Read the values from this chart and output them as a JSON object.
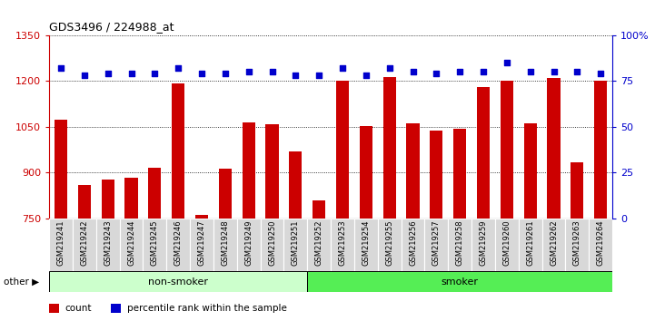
{
  "title": "GDS3496 / 224988_at",
  "categories": [
    "GSM219241",
    "GSM219242",
    "GSM219243",
    "GSM219244",
    "GSM219245",
    "GSM219246",
    "GSM219247",
    "GSM219248",
    "GSM219249",
    "GSM219250",
    "GSM219251",
    "GSM219252",
    "GSM219253",
    "GSM219254",
    "GSM219255",
    "GSM219256",
    "GSM219257",
    "GSM219258",
    "GSM219259",
    "GSM219260",
    "GSM219261",
    "GSM219262",
    "GSM219263",
    "GSM219264"
  ],
  "bar_values": [
    1072,
    858,
    878,
    882,
    915,
    1192,
    762,
    912,
    1065,
    1057,
    968,
    810,
    1200,
    1052,
    1213,
    1060,
    1037,
    1045,
    1180,
    1200,
    1060,
    1210,
    935,
    1200
  ],
  "percentile_values": [
    82,
    78,
    79,
    79,
    79,
    82,
    79,
    79,
    80,
    80,
    78,
    78,
    82,
    78,
    82,
    80,
    79,
    80,
    80,
    85,
    80,
    80,
    80,
    79
  ],
  "non_smoker_count": 11,
  "smoker_count": 13,
  "bar_color": "#cc0000",
  "dot_color": "#0000cc",
  "non_smoker_bg": "#ccffcc",
  "smoker_bg": "#55ee55",
  "ylim_left": [
    750,
    1350
  ],
  "ylim_right": [
    0,
    100
  ],
  "grid_values": [
    750,
    900,
    1050,
    1200,
    1350
  ],
  "right_ticks": [
    0,
    25,
    50,
    75,
    100
  ],
  "right_tick_labels": [
    "0",
    "25",
    "50",
    "75",
    "100%"
  ]
}
